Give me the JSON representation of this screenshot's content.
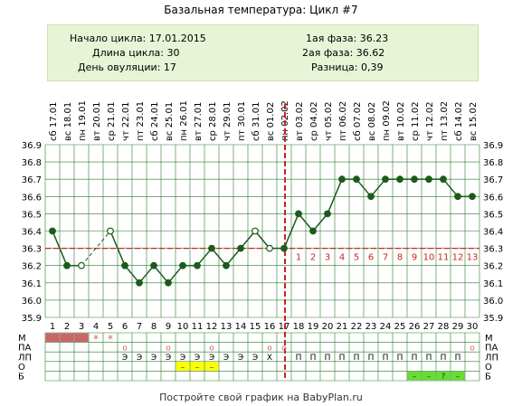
{
  "header": {
    "title": "Базальная температура: Цикл #7"
  },
  "info": {
    "cycle_start": "Начало цикла: 17.01.2015",
    "cycle_length": "Длина цикла: 30",
    "ovulation_day": "День овуляции: 17",
    "phase1": "1ая фаза: 36.23",
    "phase2": "2ая фаза: 36.62",
    "difference": "Разница: 0,39"
  },
  "colors": {
    "line": "#1a5c1a",
    "coverline": "#cc2222",
    "ovulation": "#cc2222",
    "grid": "#2a7a2a",
    "menses": "#cc6666",
    "highlight_yellow": "#ffff00",
    "highlight_green": "#66dd33"
  },
  "chart_data": {
    "type": "line",
    "title": "",
    "ylim": [
      35.9,
      36.9
    ],
    "yticks": [
      "36.9",
      "36.8",
      "36.7",
      "36.6",
      "36.5",
      "36.4",
      "36.3",
      "36.2",
      "36.1",
      "36.0",
      "35.9"
    ],
    "day_numbers": [
      "1",
      "2",
      "3",
      "4",
      "5",
      "6",
      "7",
      "8",
      "9",
      "10",
      "11",
      "12",
      "13",
      "14",
      "15",
      "16",
      "17",
      "18",
      "19",
      "20",
      "21",
      "22",
      "23",
      "24",
      "25",
      "26",
      "27",
      "28",
      "29",
      "30"
    ],
    "dates": [
      "сб 17.01",
      "вс 18.01",
      "пн 19.01",
      "вт 20.01",
      "ср 21.01",
      "чт 22.01",
      "пт 23.01",
      "сб 24.01",
      "вс 25.01",
      "пн 26.01",
      "вт 27.01",
      "ср 28.01",
      "чт 29.01",
      "пт 30.01",
      "сб 31.01",
      "вс 01.02",
      "пн 02.02",
      "вт 03.02",
      "ср 04.02",
      "чт 05.02",
      "пт 06.02",
      "сб 07.02",
      "вс 08.02",
      "пн 09.02",
      "вт 10.02",
      "ср 11.02",
      "чт 12.02",
      "пт 13.02",
      "сб 14.02",
      "вс 15.02"
    ],
    "temperatures": [
      36.4,
      36.2,
      36.2,
      null,
      36.4,
      36.2,
      36.1,
      36.2,
      36.1,
      36.2,
      36.2,
      36.3,
      36.2,
      36.3,
      36.4,
      36.3,
      36.3,
      36.5,
      36.4,
      36.5,
      36.7,
      36.7,
      36.6,
      36.7,
      36.7,
      36.7,
      36.7,
      36.7,
      36.6,
      36.6
    ],
    "open_markers": [
      3,
      5,
      15,
      16
    ],
    "coverline": 36.3,
    "ovulation_day": 17,
    "phase2_counts": [
      "1",
      "2",
      "3",
      "4",
      "5",
      "6",
      "7",
      "8",
      "9",
      "10",
      "11",
      "12",
      "13"
    ]
  },
  "table": {
    "row_labels": [
      "М",
      "ПА",
      "ЛП",
      "О",
      "Б"
    ],
    "menses_days": [
      1,
      2,
      3
    ],
    "menses_star_days": [
      4,
      5
    ],
    "star": "*",
    "pa_marks": {
      "symbol": "о",
      "days": [
        6,
        9,
        12,
        16,
        17,
        30
      ]
    },
    "lp_marks": {
      "days": [
        6,
        7,
        8,
        9,
        10,
        11,
        12,
        13,
        14,
        15
      ],
      "symbol_e": "Э",
      "x_day": 16,
      "symbol_x": "Х",
      "p_days": [
        18,
        19,
        20,
        21,
        22,
        23,
        24,
        25,
        26,
        27,
        28,
        29
      ],
      "symbol_p": "П"
    },
    "o_marks": {
      "days": [
        10,
        11,
        12
      ],
      "symbol": "–"
    },
    "b_marks": {
      "days": [
        26,
        27,
        28,
        29
      ],
      "symbols": [
        "–",
        "–",
        "?",
        "–"
      ]
    }
  },
  "footer": {
    "text": "Постройте свой график на BabyPlan.ru"
  }
}
